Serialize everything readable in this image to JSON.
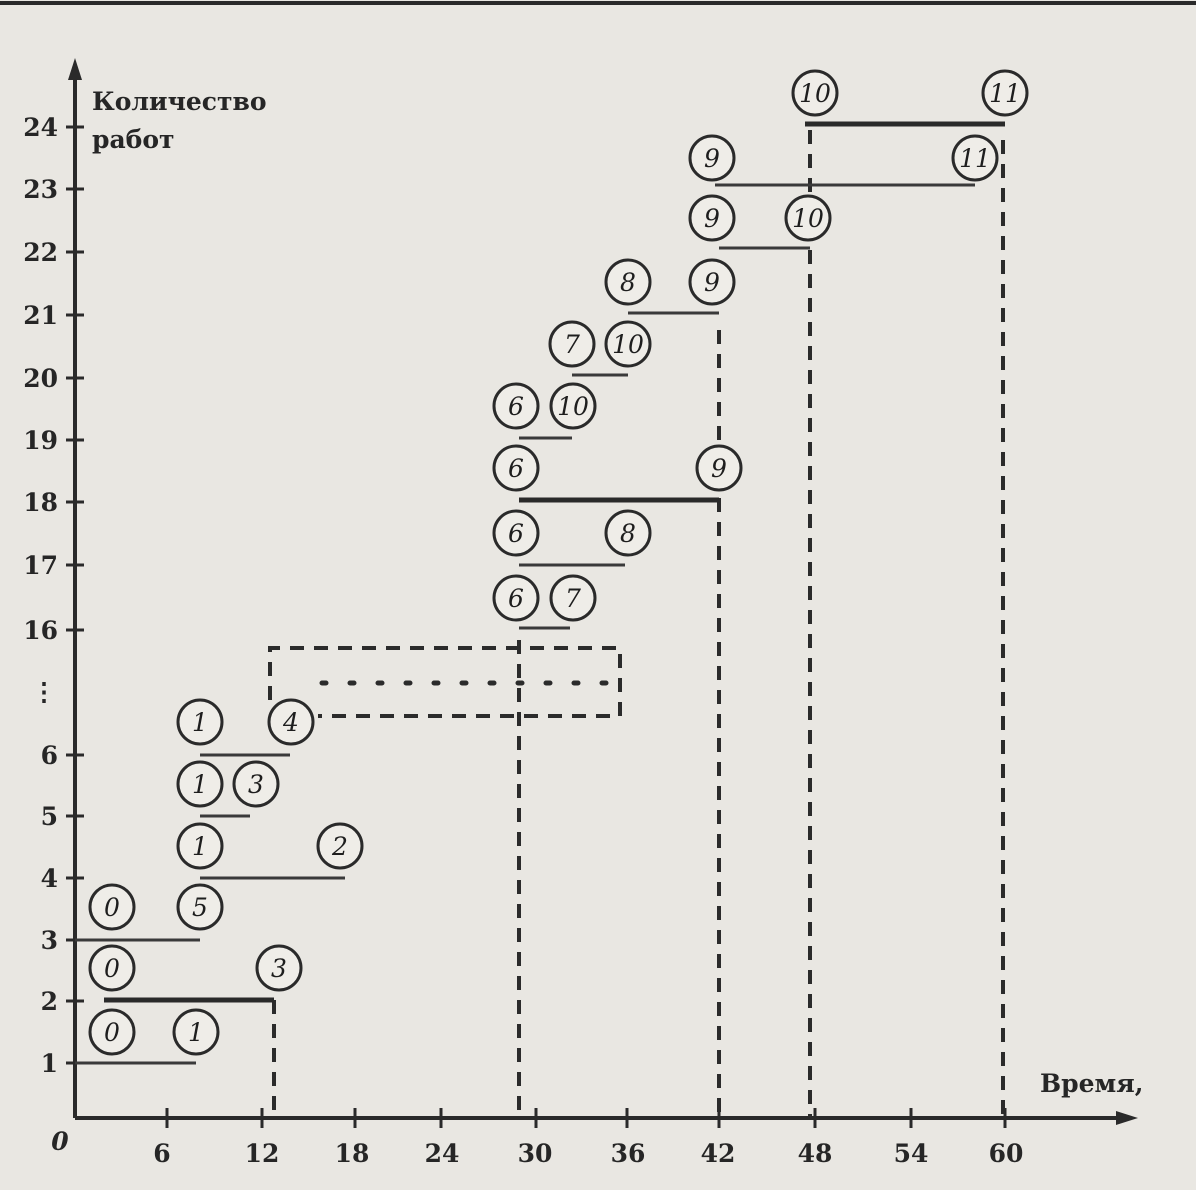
{
  "diagram": {
    "y_axis_title_line1": "Количество",
    "y_axis_title_line2": "работ",
    "x_axis_title": "Время,",
    "origin_label": "0",
    "y_ellipsis": "⋮",
    "x_ticks": [
      "6",
      "12",
      "18",
      "24",
      "30",
      "36",
      "42",
      "48",
      "54",
      "60"
    ],
    "y_ticks": [
      "1",
      "2",
      "3",
      "4",
      "5",
      "6",
      "16",
      "17",
      "18",
      "19",
      "20",
      "21",
      "22",
      "23",
      "24"
    ],
    "nodes": [
      "0",
      "0",
      "0",
      "1",
      "1",
      "1",
      "1",
      "1",
      "5",
      "2",
      "3",
      "3",
      "4",
      "6",
      "7",
      "6",
      "8",
      "6",
      "9",
      "6",
      "10",
      "7",
      "10",
      "8",
      "9",
      "9",
      "10",
      "9",
      "11",
      "10",
      "11"
    ]
  }
}
